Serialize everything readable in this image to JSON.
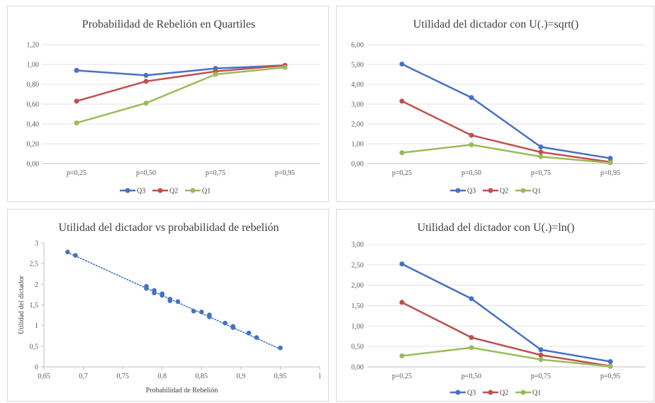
{
  "chart_data": [
    {
      "type": "line",
      "title": "Probabilidad de Rebelión en Quartiles",
      "categories": [
        "p=0,25",
        "p=0,50",
        "p=0,75",
        "p=0,95"
      ],
      "y_ticks": [
        "0,00",
        "0,20",
        "0,40",
        "0,60",
        "0,80",
        "1,00",
        "1,20"
      ],
      "ylim": [
        0,
        1.2
      ],
      "grid": true,
      "legend_position": "bottom",
      "series": [
        {
          "name": "Q3",
          "color": "#4472c4",
          "values": [
            0.94,
            0.89,
            0.96,
            0.99
          ]
        },
        {
          "name": "Q2",
          "color": "#c0504d",
          "values": [
            0.63,
            0.83,
            0.93,
            0.99
          ]
        },
        {
          "name": "Q1",
          "color": "#9bbb59",
          "values": [
            0.41,
            0.61,
            0.9,
            0.97
          ]
        }
      ]
    },
    {
      "type": "line",
      "title": "Utilidad  del dictador con U(.)=sqrt()",
      "categories": [
        "p=0,25",
        "p=0,50",
        "p=0,75",
        "p=0,95"
      ],
      "y_ticks": [
        "0,00",
        "1,00",
        "2,00",
        "3,00",
        "4,00",
        "5,00",
        "6,00"
      ],
      "ylim": [
        0,
        6
      ],
      "grid": true,
      "legend_position": "bottom",
      "series": [
        {
          "name": "Q3",
          "color": "#4472c4",
          "values": [
            5.02,
            3.33,
            0.84,
            0.27
          ]
        },
        {
          "name": "Q2",
          "color": "#c0504d",
          "values": [
            3.15,
            1.43,
            0.58,
            0.08
          ]
        },
        {
          "name": "Q1",
          "color": "#9bbb59",
          "values": [
            0.55,
            0.95,
            0.35,
            0.04
          ]
        }
      ]
    },
    {
      "type": "scatter",
      "title": "Utilidad  del dictador vs probabilidad de rebelión",
      "xlabel": "Probabilidad de Rebelión",
      "ylabel": "Utilidad del dictador",
      "x_ticks": [
        "0,65",
        "0,7",
        "0,75",
        "0,8",
        "0,85",
        "0,9",
        "0,95",
        "1"
      ],
      "y_ticks": [
        "0",
        "0,5",
        "1",
        "1,5",
        "2",
        "2,5",
        "3"
      ],
      "xlim": [
        0.65,
        1.0
      ],
      "ylim": [
        0,
        3
      ],
      "grid": false,
      "trendline": {
        "style": "dotted",
        "color": "#4472c4",
        "from": [
          0.68,
          2.77
        ],
        "to": [
          0.95,
          0.43
        ]
      },
      "points": [
        {
          "x": 0.68,
          "y": 2.78
        },
        {
          "x": 0.69,
          "y": 2.7
        },
        {
          "x": 0.78,
          "y": 1.95
        },
        {
          "x": 0.78,
          "y": 1.9
        },
        {
          "x": 0.79,
          "y": 1.85
        },
        {
          "x": 0.79,
          "y": 1.79
        },
        {
          "x": 0.8,
          "y": 1.77
        },
        {
          "x": 0.8,
          "y": 1.73
        },
        {
          "x": 0.81,
          "y": 1.64
        },
        {
          "x": 0.81,
          "y": 1.6
        },
        {
          "x": 0.82,
          "y": 1.58
        },
        {
          "x": 0.84,
          "y": 1.35
        },
        {
          "x": 0.85,
          "y": 1.33
        },
        {
          "x": 0.86,
          "y": 1.26
        },
        {
          "x": 0.86,
          "y": 1.21
        },
        {
          "x": 0.88,
          "y": 1.06
        },
        {
          "x": 0.89,
          "y": 0.98
        },
        {
          "x": 0.89,
          "y": 0.95
        },
        {
          "x": 0.91,
          "y": 0.82
        },
        {
          "x": 0.92,
          "y": 0.71
        },
        {
          "x": 0.95,
          "y": 0.46
        }
      ],
      "color": "#4472c4"
    },
    {
      "type": "line",
      "title": "Utilidad  del dictador con U(.)=ln()",
      "categories": [
        "p=0,25",
        "p=0,50",
        "p=0,75",
        "p=0,95"
      ],
      "y_ticks": [
        "0,00",
        "0,50",
        "1,00",
        "1,50",
        "2,00",
        "2,50",
        "3,00"
      ],
      "ylim": [
        0,
        3
      ],
      "grid": true,
      "legend_position": "bottom",
      "series": [
        {
          "name": "Q3",
          "color": "#4472c4",
          "values": [
            2.52,
            1.67,
            0.42,
            0.13
          ]
        },
        {
          "name": "Q2",
          "color": "#c0504d",
          "values": [
            1.58,
            0.72,
            0.29,
            0.02
          ]
        },
        {
          "name": "Q1",
          "color": "#9bbb59",
          "values": [
            0.27,
            0.47,
            0.18,
            0.01
          ]
        }
      ]
    }
  ]
}
